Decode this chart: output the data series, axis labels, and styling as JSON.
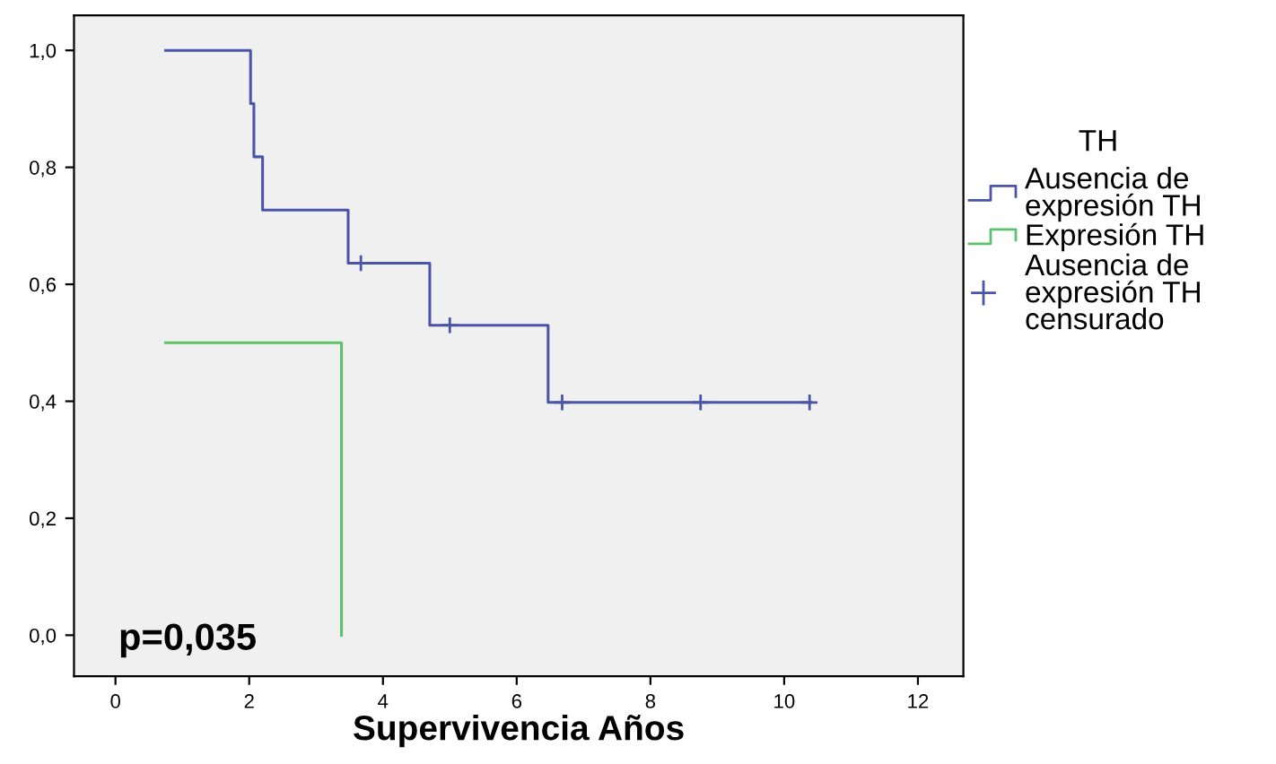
{
  "chart_data": {
    "type": "step",
    "xlabel": "Supervivencia Años",
    "legend_title": "TH",
    "legend": "right",
    "grid": false,
    "annotations": [
      "p=0,035"
    ],
    "xlim": [
      -0.62,
      12.68
    ],
    "xticks": [
      0,
      2,
      4,
      6,
      8,
      10,
      12
    ],
    "ylim": [
      -0.07,
      1.06
    ],
    "yticks": [
      {
        "value": 0,
        "label": "0,0"
      },
      {
        "value": 0.2,
        "label": "0,2"
      },
      {
        "value": 0.4,
        "label": "0,4"
      },
      {
        "value": 0.6,
        "label": "0,6"
      },
      {
        "value": 0.8,
        "label": "0,8"
      },
      {
        "value": 1,
        "label": "1,0"
      }
    ],
    "series": [
      {
        "name": "Ausencia de expresión TH",
        "color": "#4a55a8",
        "x": [
          0.75,
          2.02,
          2.07,
          2.2,
          3.48,
          4.7,
          6.47,
          10.4
        ],
        "values": [
          1,
          0.909,
          0.818,
          0.727,
          0.636,
          0.53,
          0.398,
          0.398
        ]
      },
      {
        "name": "Expresión TH",
        "color": "#5cc36a",
        "x": [
          0.75,
          3.38
        ],
        "values": [
          0.5,
          0
        ]
      },
      {
        "name": "Ausencia de expresión TH censurado",
        "type": "scatter",
        "marker": "cross",
        "color": "#4a55a8",
        "x": [
          3.67,
          5.0,
          6.68,
          8.75,
          10.38
        ],
        "values": [
          0.636,
          0.53,
          0.398,
          0.398,
          0.398
        ]
      }
    ]
  }
}
